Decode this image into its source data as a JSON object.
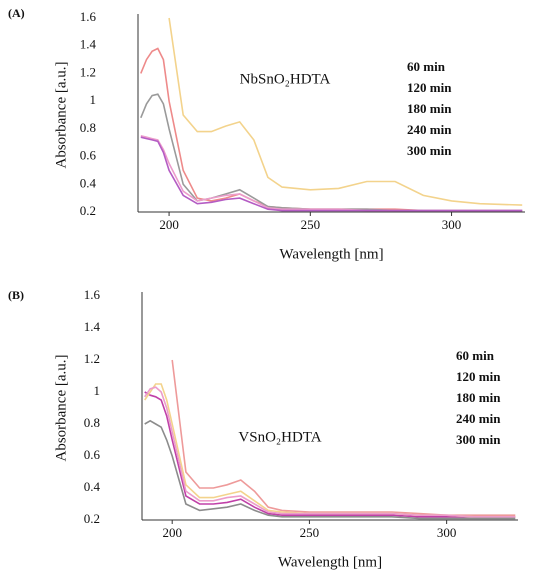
{
  "chart_data": [
    {
      "type": "line",
      "panel_label": "(A)",
      "annotation": "NbSnO₂HDTA",
      "x_label": "Wavelength [nm]",
      "y_label": "Absorbance [a.u.]",
      "xlim": [
        189,
        326
      ],
      "xticks": [
        200,
        250,
        300
      ],
      "ylim": [
        0.2,
        1.6
      ],
      "yticks": [
        1.6,
        1.4,
        1.2,
        1.0,
        0.8,
        0.6,
        0.4,
        0.2
      ],
      "x": [
        190,
        192,
        194,
        196,
        198,
        200,
        205,
        210,
        215,
        220,
        225,
        230,
        235,
        240,
        250,
        260,
        270,
        280,
        290,
        300,
        310,
        325
      ],
      "series": [
        {
          "name": "60 min",
          "color": "#ee8a8a",
          "values": [
            1.2,
            1.3,
            1.36,
            1.38,
            1.3,
            1.0,
            0.5,
            0.3,
            0.28,
            0.3,
            0.33,
            0.28,
            0.24,
            0.23,
            0.22,
            0.22,
            0.22,
            0.22,
            0.21,
            0.21,
            0.21,
            0.21
          ]
        },
        {
          "name": "120 min",
          "color": "#9a9a9a",
          "values": [
            0.88,
            0.98,
            1.04,
            1.05,
            0.98,
            0.8,
            0.4,
            0.28,
            0.3,
            0.33,
            0.36,
            0.3,
            0.24,
            0.23,
            0.22,
            0.22,
            0.22,
            0.21,
            0.21,
            0.21,
            0.21,
            0.21
          ]
        },
        {
          "name": "180 min",
          "color": "#f3d38c",
          "values": [
            null,
            null,
            null,
            null,
            null,
            1.6,
            0.9,
            0.78,
            0.78,
            0.82,
            0.85,
            0.72,
            0.45,
            0.38,
            0.36,
            0.37,
            0.42,
            0.42,
            0.32,
            0.28,
            0.26,
            0.25
          ]
        },
        {
          "name": "240 min",
          "color": "#ec9ccb",
          "values": [
            0.75,
            0.74,
            0.73,
            0.72,
            0.65,
            0.55,
            0.35,
            0.28,
            0.3,
            0.32,
            0.33,
            0.28,
            0.23,
            0.22,
            0.22,
            0.22,
            0.21,
            0.21,
            0.21,
            0.21,
            0.21,
            0.21
          ]
        },
        {
          "name": "300 min",
          "color": "#b45cc4",
          "values": [
            0.74,
            0.73,
            0.72,
            0.71,
            0.63,
            0.5,
            0.32,
            0.26,
            0.27,
            0.29,
            0.3,
            0.26,
            0.22,
            0.21,
            0.21,
            0.21,
            0.21,
            0.21,
            0.21,
            0.21,
            0.21,
            0.21
          ]
        }
      ]
    },
    {
      "type": "line",
      "panel_label": "(B)",
      "annotation": "VSnO₂HDTA",
      "x_label": "Wavelength [nm]",
      "y_label": "Absorbance [a.u.]",
      "xlim": [
        189,
        326
      ],
      "xticks": [
        200,
        250,
        300
      ],
      "ylim": [
        0.2,
        1.6
      ],
      "yticks": [
        1.6,
        1.4,
        1.2,
        1.0,
        0.8,
        0.6,
        0.4,
        0.2
      ],
      "x": [
        190,
        192,
        194,
        196,
        198,
        200,
        205,
        210,
        215,
        220,
        225,
        230,
        235,
        240,
        250,
        260,
        270,
        280,
        290,
        300,
        310,
        325
      ],
      "series": [
        {
          "name": "60 min",
          "color": "#ee9a9a",
          "values": [
            null,
            null,
            null,
            null,
            null,
            1.2,
            0.5,
            0.4,
            0.4,
            0.42,
            0.45,
            0.38,
            0.28,
            0.26,
            0.25,
            0.25,
            0.25,
            0.25,
            0.24,
            0.23,
            0.23,
            0.23
          ]
        },
        {
          "name": "120 min",
          "color": "#c040a8",
          "values": [
            1.0,
            0.98,
            0.97,
            0.95,
            0.85,
            0.7,
            0.35,
            0.3,
            0.3,
            0.31,
            0.33,
            0.28,
            0.24,
            0.23,
            0.23,
            0.23,
            0.23,
            0.23,
            0.22,
            0.22,
            0.22,
            0.22
          ]
        },
        {
          "name": "180 min",
          "color": "#f3d38c",
          "values": [
            0.95,
            1.0,
            1.05,
            1.05,
            0.95,
            0.8,
            0.42,
            0.34,
            0.34,
            0.36,
            0.38,
            0.32,
            0.26,
            0.25,
            0.24,
            0.24,
            0.24,
            0.24,
            0.23,
            0.23,
            0.22,
            0.22
          ]
        },
        {
          "name": "240 min",
          "color": "#ec9ccb",
          "values": [
            0.97,
            1.02,
            1.03,
            1.0,
            0.9,
            0.75,
            0.38,
            0.32,
            0.32,
            0.34,
            0.35,
            0.3,
            0.25,
            0.24,
            0.24,
            0.24,
            0.24,
            0.24,
            0.23,
            0.23,
            0.22,
            0.22
          ]
        },
        {
          "name": "300 min",
          "color": "#8c8c8c",
          "values": [
            0.8,
            0.82,
            0.8,
            0.78,
            0.7,
            0.6,
            0.3,
            0.26,
            0.27,
            0.28,
            0.3,
            0.26,
            0.23,
            0.22,
            0.22,
            0.22,
            0.22,
            0.22,
            0.21,
            0.21,
            0.21,
            0.21
          ]
        }
      ]
    }
  ]
}
